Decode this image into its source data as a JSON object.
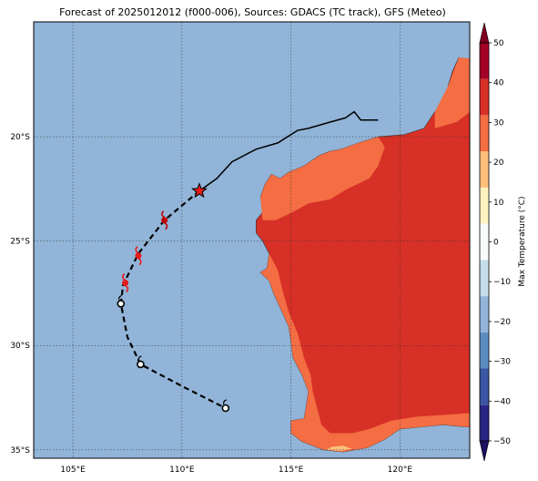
{
  "title": "Forecast of 2025012012 (f000-006), Sources: GDACS (TC track), GFS (Meteo)",
  "map": {
    "lon_range": [
      103.2,
      123.2
    ],
    "lat_range": [
      -35.4,
      -14.5
    ],
    "lon_ticks": [
      {
        "value": 105,
        "label": "105°E"
      },
      {
        "value": 110,
        "label": "110°E"
      },
      {
        "value": 115,
        "label": "115°E"
      },
      {
        "value": 120,
        "label": "120°E"
      }
    ],
    "lat_ticks": [
      {
        "value": -20,
        "label": "20°S"
      },
      {
        "value": -25,
        "label": "25°S"
      },
      {
        "value": -30,
        "label": "30°S"
      },
      {
        "value": -35,
        "label": "35°S"
      }
    ],
    "grid": "dotted",
    "ocean_color": "#91b4d8"
  },
  "colorbar": {
    "label": "Max Temperature (°C)",
    "min": -50,
    "max": 50,
    "ticks": [
      {
        "value": 50,
        "label": "50"
      },
      {
        "value": 40,
        "label": "40"
      },
      {
        "value": 30,
        "label": "30"
      },
      {
        "value": 20,
        "label": "20"
      },
      {
        "value": 10,
        "label": "10"
      },
      {
        "value": 0,
        "label": "0"
      },
      {
        "value": -10,
        "label": "−10"
      },
      {
        "value": -20,
        "label": "−20"
      },
      {
        "value": -30,
        "label": "−30"
      },
      {
        "value": -40,
        "label": "−40"
      },
      {
        "value": -50,
        "label": "−50"
      }
    ],
    "colors": [
      "#2a2585",
      "#3a56a4",
      "#5c8dc1",
      "#91b4d8",
      "#c6deec",
      "#f8fcfd",
      "#fff2c0",
      "#fdbf7a",
      "#f46d43",
      "#d73027",
      "#a50026"
    ],
    "extend_low_color": "#1c1060",
    "extend_high_color": "#80001f"
  },
  "temperature_fill": {
    "hot_color": "#d73027",
    "warm_color": "#f46d43",
    "mild_color": "#fdbf7a"
  },
  "track": {
    "past_color": "#000000",
    "forecast_color": "#000000",
    "past": [
      [
        119.0,
        -19.2
      ],
      [
        118.2,
        -19.2
      ],
      [
        117.9,
        -18.8
      ],
      [
        117.5,
        -19.1
      ],
      [
        116.8,
        -19.3
      ],
      [
        115.8,
        -19.6
      ],
      [
        115.3,
        -19.7
      ],
      [
        114.4,
        -20.3
      ],
      [
        113.4,
        -20.6
      ],
      [
        112.3,
        -21.2
      ],
      [
        111.6,
        -22.0
      ],
      [
        110.8,
        -22.6
      ]
    ],
    "current": {
      "lon": 110.8,
      "lat": -22.6,
      "color": "#e41a1c",
      "icon": "star-icon"
    },
    "forecast": [
      [
        110.8,
        -22.6
      ],
      [
        109.2,
        -24.0
      ],
      [
        108.0,
        -25.6
      ],
      [
        107.3,
        -27.1
      ],
      [
        107.2,
        -28.0
      ],
      [
        107.5,
        -29.6
      ],
      [
        108.1,
        -30.9
      ],
      [
        110.1,
        -32.0
      ],
      [
        112.0,
        -33.0
      ]
    ],
    "symbols": [
      {
        "lon": 109.2,
        "lat": -24.0,
        "color": "#c00000",
        "kind": "cyclone"
      },
      {
        "lon": 108.0,
        "lat": -25.7,
        "color": "#e41a1c",
        "kind": "storm"
      },
      {
        "lon": 107.4,
        "lat": -27.0,
        "color": "#e41a1c",
        "kind": "storm"
      },
      {
        "lon": 107.2,
        "lat": -28.0,
        "color": "#000000",
        "kind": "low"
      },
      {
        "lon": 108.1,
        "lat": -30.9,
        "color": "#000000",
        "kind": "low"
      },
      {
        "lon": 112.0,
        "lat": -33.0,
        "color": "#000000",
        "kind": "low"
      }
    ]
  }
}
